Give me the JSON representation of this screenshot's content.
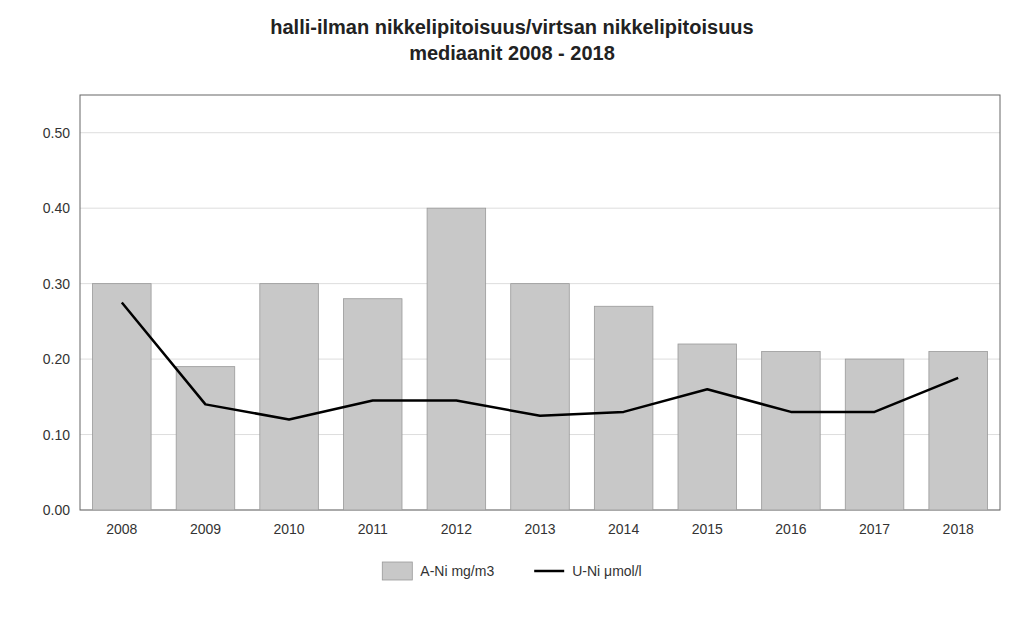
{
  "chart_data": {
    "type": "bar",
    "title": "halli-ilman nikkelipitoisuus/virtsan nikkelipitoisuus\nmediaanit 2008 - 2018",
    "categories": [
      "2008",
      "2009",
      "2010",
      "2011",
      "2012",
      "2013",
      "2014",
      "2015",
      "2016",
      "2017",
      "2018"
    ],
    "series": [
      {
        "name": "A-Ni mg/m3",
        "type": "bar",
        "color": "#c8c8c8",
        "values": [
          0.3,
          0.19,
          0.3,
          0.28,
          0.4,
          0.3,
          0.27,
          0.22,
          0.21,
          0.2,
          0.21
        ]
      },
      {
        "name": "U-Ni μmol/l",
        "type": "line",
        "color": "#000000",
        "values": [
          0.275,
          0.14,
          0.12,
          0.145,
          0.145,
          0.125,
          0.13,
          0.16,
          0.13,
          0.13,
          0.175
        ]
      }
    ],
    "ylim": [
      0.0,
      0.55
    ],
    "yticks": [
      {
        "value": 0.0,
        "label": "0.00"
      },
      {
        "value": 0.1,
        "label": "0.10"
      },
      {
        "value": 0.2,
        "label": "0.20"
      },
      {
        "value": 0.3,
        "label": "0.30"
      },
      {
        "value": 0.4,
        "label": "0.40"
      },
      {
        "value": 0.5,
        "label": "0.50"
      }
    ],
    "grid": true,
    "legend": "bottom"
  }
}
